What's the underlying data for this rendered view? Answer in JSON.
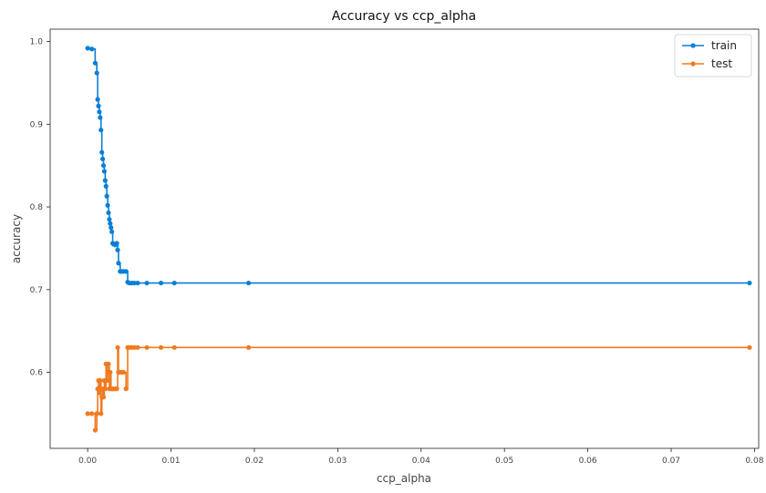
{
  "chart_data": {
    "type": "line",
    "title": "Accuracy vs ccp_alpha",
    "xlabel": "ccp_alpha",
    "ylabel": "accuracy",
    "xlim": [
      -0.0045,
      0.0805
    ],
    "ylim": [
      0.508,
      1.015
    ],
    "xticks": [
      0.0,
      0.01,
      0.02,
      0.03,
      0.04,
      0.05,
      0.06,
      0.07,
      0.08
    ],
    "xtick_labels": [
      "0.00",
      "0.01",
      "0.02",
      "0.03",
      "0.04",
      "0.05",
      "0.06",
      "0.07",
      "0.08"
    ],
    "yticks": [
      0.6,
      0.7,
      0.8,
      0.9,
      1.0
    ],
    "ytick_labels": [
      "0.6",
      "0.7",
      "0.8",
      "0.9",
      "1.0"
    ],
    "grid": false,
    "legend": "top-right",
    "drawstyle": "steps-post",
    "series": [
      {
        "name": "train",
        "color": "#0a7fd6",
        "x": [
          0.0,
          0.0005,
          0.0009,
          0.0011,
          0.0012,
          0.0013,
          0.0014,
          0.0015,
          0.0016,
          0.0017,
          0.0018,
          0.0019,
          0.002,
          0.0021,
          0.0022,
          0.0023,
          0.0024,
          0.0025,
          0.0026,
          0.0027,
          0.0028,
          0.0029,
          0.003,
          0.0031,
          0.0033,
          0.0035,
          0.0036,
          0.0037,
          0.0039,
          0.0041,
          0.0043,
          0.0046,
          0.0048,
          0.005,
          0.0053,
          0.0056,
          0.006,
          0.0071,
          0.0088,
          0.0104,
          0.0193,
          0.0794
        ],
        "values": [
          0.992,
          0.991,
          0.974,
          0.962,
          0.93,
          0.922,
          0.915,
          0.908,
          0.893,
          0.866,
          0.858,
          0.85,
          0.843,
          0.832,
          0.825,
          0.813,
          0.802,
          0.793,
          0.785,
          0.78,
          0.775,
          0.77,
          0.756,
          0.755,
          0.754,
          0.756,
          0.748,
          0.732,
          0.722,
          0.722,
          0.722,
          0.722,
          0.709,
          0.708,
          0.708,
          0.708,
          0.708,
          0.708,
          0.708,
          0.708,
          0.708,
          0.708
        ]
      },
      {
        "name": "test",
        "color": "#f07a1f",
        "x": [
          0.0,
          0.0005,
          0.0009,
          0.0011,
          0.0012,
          0.0013,
          0.0014,
          0.0015,
          0.0016,
          0.0017,
          0.0018,
          0.0019,
          0.002,
          0.0021,
          0.0022,
          0.0023,
          0.0024,
          0.0025,
          0.0026,
          0.0027,
          0.0028,
          0.0029,
          0.003,
          0.0031,
          0.0033,
          0.0035,
          0.0036,
          0.0037,
          0.0039,
          0.0041,
          0.0043,
          0.0046,
          0.0048,
          0.005,
          0.0053,
          0.0056,
          0.006,
          0.0071,
          0.0088,
          0.0104,
          0.0193,
          0.0794
        ],
        "values": [
          0.55,
          0.55,
          0.53,
          0.55,
          0.58,
          0.59,
          0.575,
          0.59,
          0.55,
          0.57,
          0.58,
          0.57,
          0.59,
          0.58,
          0.61,
          0.59,
          0.6,
          0.61,
          0.58,
          0.6,
          0.58,
          0.58,
          0.58,
          0.58,
          0.58,
          0.58,
          0.63,
          0.6,
          0.6,
          0.6,
          0.6,
          0.58,
          0.63,
          0.63,
          0.63,
          0.63,
          0.63,
          0.63,
          0.63,
          0.63,
          0.63,
          0.63
        ]
      }
    ]
  }
}
